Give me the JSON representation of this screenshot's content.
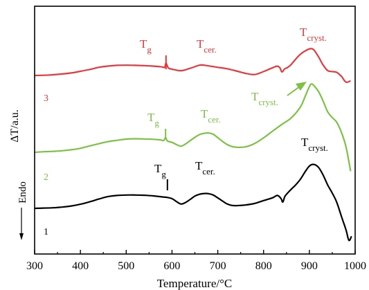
{
  "chart_data": {
    "type": "line",
    "xlabel": "Temperature/°C",
    "ylabel": "ΔT/a.u.",
    "xlim": [
      300,
      1000
    ],
    "xticks": [
      300,
      400,
      500,
      600,
      700,
      800,
      900,
      1000
    ],
    "yticks_shown": false,
    "grid": false,
    "legend": "none",
    "endo_label": "Endo",
    "series": [
      {
        "id": "1",
        "label": "1",
        "color": "#000000",
        "x": [
          300,
          320,
          340,
          360,
          380,
          400,
          420,
          440,
          460,
          480,
          500,
          520,
          540,
          560,
          580,
          590,
          600,
          610,
          620,
          630,
          640,
          650,
          660,
          670,
          680,
          690,
          700,
          710,
          720,
          730,
          740,
          760,
          780,
          800,
          820,
          830,
          838,
          842,
          846,
          850,
          860,
          870,
          880,
          890,
          900,
          910,
          920,
          930,
          940,
          950,
          960,
          970,
          980,
          985,
          988,
          992
        ],
        "y": [
          0.0,
          0.3,
          0.6,
          1.4,
          2.6,
          4.5,
          7.2,
          10.3,
          13.0,
          14.3,
          14.8,
          14.8,
          14.5,
          13.8,
          12.6,
          12.1,
          10.8,
          7.5,
          4.8,
          6.6,
          10.0,
          13.6,
          15.6,
          16.5,
          16.3,
          14.8,
          11.6,
          8.2,
          5.0,
          3.3,
          3.0,
          3.7,
          5.4,
          8.6,
          11.8,
          14.3,
          11.0,
          7.0,
          12.6,
          15.6,
          21.0,
          26.0,
          32.0,
          40.0,
          47.0,
          48.8,
          45.5,
          37.0,
          26.0,
          17.0,
          6.5,
          -9.0,
          -24.0,
          -34.0,
          -35.5,
          -31.0
        ]
      },
      {
        "id": "2",
        "label": "2",
        "color": "#7cc242",
        "x": [
          300,
          320,
          340,
          360,
          380,
          400,
          420,
          440,
          460,
          480,
          500,
          520,
          540,
          560,
          575,
          582,
          586,
          590,
          600,
          610,
          620,
          630,
          640,
          650,
          660,
          670,
          680,
          690,
          700,
          710,
          720,
          730,
          740,
          760,
          780,
          800,
          820,
          840,
          860,
          880,
          890,
          900,
          905,
          910,
          920,
          930,
          940,
          950,
          960,
          970,
          980,
          990
        ],
        "y": [
          0.0,
          0.6,
          1.0,
          1.7,
          2.8,
          4.4,
          7.0,
          9.5,
          11.8,
          13.3,
          14.6,
          15.0,
          14.8,
          14.4,
          13.7,
          13.1,
          16.3,
          12.6,
          11.0,
          8.5,
          6.8,
          9.4,
          13.0,
          16.6,
          19.6,
          21.0,
          21.4,
          20.0,
          16.2,
          12.2,
          8.8,
          6.6,
          5.6,
          6.0,
          9.6,
          16.0,
          23.5,
          31.0,
          38.0,
          50.0,
          61.0,
          73.0,
          76.0,
          74.0,
          67.5,
          57.0,
          45.0,
          38.6,
          33.2,
          22.0,
          6.0,
          -21.0
        ]
      },
      {
        "id": "3",
        "label": "3",
        "color": "#e8373a",
        "x": [
          300,
          320,
          340,
          360,
          380,
          400,
          420,
          440,
          460,
          480,
          500,
          520,
          540,
          560,
          578,
          584,
          587,
          592,
          600,
          620,
          640,
          660,
          670,
          680,
          700,
          720,
          740,
          760,
          780,
          800,
          820,
          830,
          836,
          840,
          846,
          852,
          860,
          870,
          880,
          890,
          900,
          905,
          910,
          920,
          930,
          940,
          950,
          960,
          970,
          980,
          990
        ],
        "y": [
          0.0,
          0.2,
          0.8,
          1.6,
          2.8,
          4.6,
          6.6,
          9.0,
          10.4,
          11.2,
          11.4,
          11.2,
          10.9,
          10.3,
          9.5,
          9.0,
          13.6,
          8.4,
          7.0,
          5.3,
          8.0,
          11.4,
          11.4,
          10.6,
          9.0,
          7.5,
          5.0,
          2.4,
          1.0,
          4.3,
          8.6,
          10.3,
          8.2,
          3.9,
          7.2,
          8.7,
          12.0,
          18.0,
          23.3,
          27.0,
          29.5,
          29.7,
          28.3,
          20.7,
          11.6,
          5.4,
          4.3,
          3.4,
          -1.0,
          -7.4,
          -6.0
        ]
      }
    ],
    "annotations": [
      {
        "series": "1",
        "main": "T",
        "sub": "g"
      },
      {
        "series": "1",
        "main": "T",
        "sub": "cer."
      },
      {
        "series": "1",
        "main": "T",
        "sub": "cryst."
      },
      {
        "series": "2",
        "main": "T",
        "sub": "g"
      },
      {
        "series": "2",
        "main": "T",
        "sub": "cer."
      },
      {
        "series": "2",
        "main": "T",
        "sub": "cryst."
      },
      {
        "series": "3",
        "main": "T",
        "sub": "g"
      },
      {
        "series": "3",
        "main": "T",
        "sub": "cer."
      },
      {
        "series": "3",
        "main": "T",
        "sub": "cryst."
      }
    ]
  }
}
